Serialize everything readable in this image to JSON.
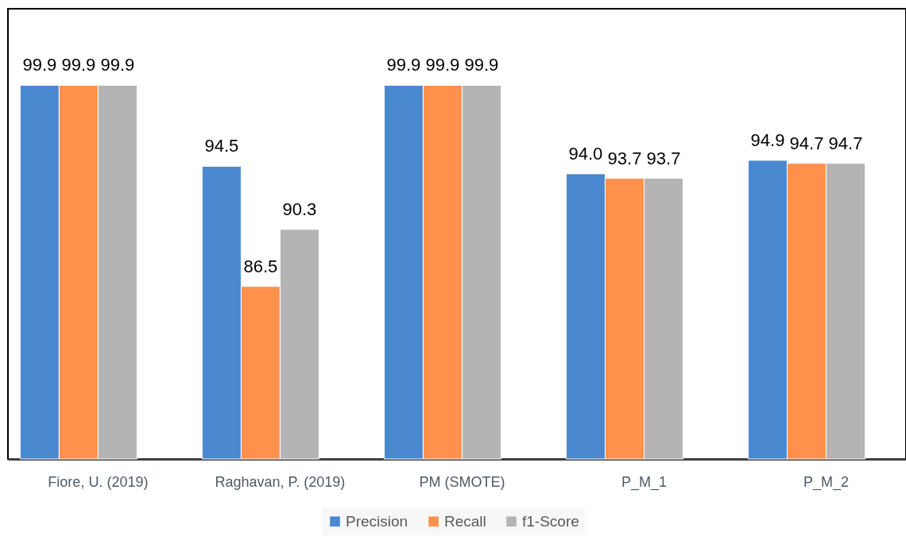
{
  "chart_data": {
    "type": "bar",
    "categories": [
      "Fiore, U. (2019)",
      "Raghavan, P. (2019)",
      "PM (SMOTE)",
      "P_M_1",
      "P_M_2"
    ],
    "series": [
      {
        "name": "Precision",
        "color": "#4a88d0",
        "values": [
          99.9,
          94.5,
          99.9,
          94.0,
          94.9
        ],
        "value_labels": [
          "99.9",
          "94.5",
          "99.9",
          "94.0",
          "94.9"
        ]
      },
      {
        "name": "Recall",
        "color": "#ff914d",
        "values": [
          99.9,
          86.5,
          99.9,
          93.7,
          94.7
        ],
        "value_labels": [
          "99.9",
          "86.5",
          "99.9",
          "93.7",
          "94.7"
        ]
      },
      {
        "name": "f1-Score",
        "color": "#b4b4b4",
        "values": [
          99.9,
          90.3,
          99.9,
          93.7,
          94.7
        ],
        "value_labels": [
          "99.9",
          "90.3",
          "99.9",
          "93.7",
          "94.7"
        ]
      }
    ],
    "ylim": [
      75,
      105
    ],
    "legend": "bottom",
    "tick_labels": "x",
    "grid": false
  }
}
